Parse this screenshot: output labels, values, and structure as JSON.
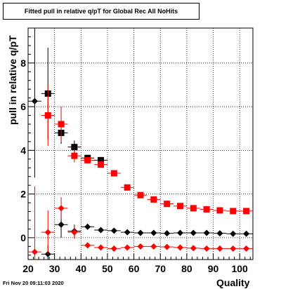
{
  "chart_data": {
    "type": "scatter",
    "title": "Fitted pull in relative q/pT for Global Rec All NoHits",
    "xlabel": "Quality",
    "ylabel": "pull in relative q/pT",
    "xlim": [
      20,
      105
    ],
    "ylim": [
      -1.0,
      9.6
    ],
    "x_ticks": [
      20,
      30,
      40,
      50,
      60,
      70,
      80,
      90,
      100
    ],
    "y_ticks": [
      0,
      2,
      4,
      6,
      8
    ],
    "grid": true,
    "legend": "none",
    "x": [
      22.5,
      27.5,
      32.5,
      37.5,
      42.5,
      47.5,
      52.5,
      57.5,
      62.5,
      67.5,
      72.5,
      77.5,
      82.5,
      87.5,
      92.5,
      97.5,
      102.5
    ],
    "series": [
      {
        "color": "#000000",
        "marker": "square",
        "values": [
          null,
          6.6,
          4.8,
          4.15,
          3.65,
          3.55,
          null,
          null,
          null,
          null,
          null,
          null,
          null,
          null,
          null,
          null,
          null
        ],
        "errors": [
          null,
          2.1,
          0.5,
          0.3,
          0.15,
          0.1,
          null,
          null,
          null,
          null,
          null,
          null,
          null,
          null,
          null,
          null,
          null
        ]
      },
      {
        "color": "#ff0000",
        "marker": "square",
        "values": [
          null,
          5.6,
          5.2,
          3.75,
          3.55,
          3.35,
          2.95,
          2.3,
          1.95,
          1.75,
          1.55,
          1.45,
          1.35,
          1.3,
          1.25,
          1.22,
          1.22
        ],
        "errors": [
          null,
          1.4,
          0.8,
          0.3,
          0.15,
          0.12,
          0.08,
          0.08,
          0.06,
          0.05,
          0.05,
          0.05,
          0.04,
          0.04,
          0.04,
          0.04,
          0.04
        ]
      },
      {
        "color": "#000000",
        "marker": "diamond",
        "values": [
          6.25,
          -0.75,
          0.6,
          0.3,
          0.5,
          0.35,
          0.32,
          0.25,
          0.22,
          0.22,
          0.2,
          0.22,
          0.22,
          0.22,
          0.2,
          0.18,
          0.18
        ],
        "errors": [
          3.5,
          0.4,
          0.6,
          0.3,
          0.1,
          0.08,
          0.06,
          0.05,
          0.05,
          0.05,
          0.05,
          0.05,
          0.04,
          0.04,
          0.04,
          0.04,
          0.04
        ]
      },
      {
        "color": "#ff0000",
        "marker": "diamond",
        "values": [
          -0.65,
          0.25,
          1.35,
          0.25,
          -0.35,
          -0.45,
          -0.5,
          -0.45,
          -0.4,
          -0.4,
          -0.42,
          -0.45,
          -0.48,
          -0.5,
          -0.5,
          -0.5,
          -0.5
        ],
        "errors": [
          3.0,
          1.0,
          0.5,
          0.3,
          0.08,
          0.06,
          0.05,
          0.05,
          0.04,
          0.04,
          0.04,
          0.04,
          0.04,
          0.04,
          0.04,
          0.04,
          0.04
        ]
      }
    ]
  },
  "footer": {
    "timestamp": "Fri Nov 20 09:11:03 2020"
  }
}
